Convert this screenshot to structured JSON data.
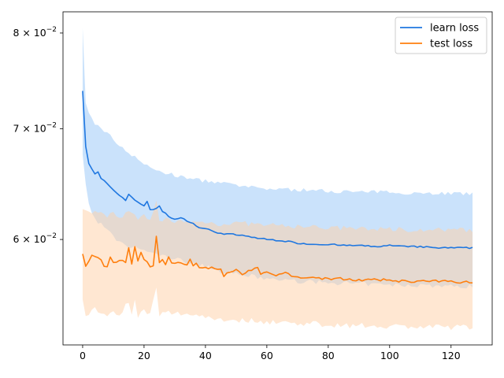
{
  "chart_data": {
    "type": "line",
    "title": "",
    "xlabel": "",
    "ylabel": "",
    "xlim": [
      -6.4,
      133.4
    ],
    "ylim": [
      0.0518,
      0.0824
    ],
    "yscale": "log",
    "grid": false,
    "legend_position": "top-right",
    "x_ticks": [
      0,
      20,
      40,
      60,
      80,
      100,
      120
    ],
    "x_tick_labels": [
      "0",
      "20",
      "40",
      "60",
      "80",
      "100",
      "120"
    ],
    "y_ticks": [
      0.06,
      0.07,
      0.08
    ],
    "y_tick_labels": [
      {
        "mantissa": "6",
        "base": "10",
        "exp": "−2"
      },
      {
        "mantissa": "7",
        "base": "10",
        "exp": "−2"
      },
      {
        "mantissa": "8",
        "base": "10",
        "exp": "−2"
      }
    ],
    "series": [
      {
        "name": "learn loss",
        "color": "#1f77e0",
        "band_color": "#9fcaf7",
        "mean_keypoints": [
          [
            0,
            0.0738
          ],
          [
            1,
            0.0683
          ],
          [
            2,
            0.0667
          ],
          [
            3,
            0.0662
          ],
          [
            4,
            0.0657
          ],
          [
            5,
            0.0659
          ],
          [
            6,
            0.0653
          ],
          [
            7,
            0.0651
          ],
          [
            8,
            0.0648
          ],
          [
            10,
            0.0643
          ],
          [
            12,
            0.0638
          ],
          [
            14,
            0.0634
          ],
          [
            15,
            0.0639
          ],
          [
            16,
            0.0636
          ],
          [
            18,
            0.0632
          ],
          [
            20,
            0.0629
          ],
          [
            21,
            0.0633
          ],
          [
            22,
            0.0625
          ],
          [
            24,
            0.0626
          ],
          [
            25,
            0.0629
          ],
          [
            26,
            0.0624
          ],
          [
            28,
            0.062
          ],
          [
            30,
            0.0617
          ],
          [
            32,
            0.0618
          ],
          [
            35,
            0.0615
          ],
          [
            38,
            0.061
          ],
          [
            40,
            0.0609
          ],
          [
            45,
            0.0605
          ],
          [
            50,
            0.0604
          ],
          [
            55,
            0.0602
          ],
          [
            60,
            0.06
          ],
          [
            65,
            0.0599
          ],
          [
            70,
            0.0597
          ],
          [
            75,
            0.0596
          ],
          [
            80,
            0.0596
          ],
          [
            85,
            0.0595
          ],
          [
            90,
            0.0595
          ],
          [
            95,
            0.0594
          ],
          [
            100,
            0.0595
          ],
          [
            105,
            0.0594
          ],
          [
            110,
            0.0594
          ],
          [
            115,
            0.0593
          ],
          [
            120,
            0.0593
          ],
          [
            127,
            0.0593
          ]
        ],
        "upper_keypoints": [
          [
            0,
            0.0804
          ],
          [
            1,
            0.0725
          ],
          [
            2,
            0.0715
          ],
          [
            3,
            0.071
          ],
          [
            4,
            0.0705
          ],
          [
            5,
            0.0703
          ],
          [
            8,
            0.0696
          ],
          [
            10,
            0.069
          ],
          [
            12,
            0.0684
          ],
          [
            15,
            0.0677
          ],
          [
            18,
            0.0672
          ],
          [
            20,
            0.0666
          ],
          [
            22,
            0.0663
          ],
          [
            25,
            0.066
          ],
          [
            30,
            0.0656
          ],
          [
            35,
            0.0653
          ],
          [
            40,
            0.0651
          ],
          [
            45,
            0.0649
          ],
          [
            50,
            0.0647
          ],
          [
            55,
            0.0645
          ],
          [
            60,
            0.0644
          ],
          [
            70,
            0.0643
          ],
          [
            80,
            0.0642
          ],
          [
            90,
            0.0641
          ],
          [
            100,
            0.0641
          ],
          [
            110,
            0.064
          ],
          [
            120,
            0.064
          ],
          [
            127,
            0.0639
          ]
        ],
        "lower_keypoints": [
          [
            0,
            0.0676
          ],
          [
            1,
            0.0648
          ],
          [
            2,
            0.063
          ],
          [
            3,
            0.0622
          ],
          [
            5,
            0.0615
          ],
          [
            8,
            0.0608
          ],
          [
            10,
            0.0602
          ],
          [
            12,
            0.0597
          ],
          [
            15,
            0.0594
          ],
          [
            18,
            0.0593
          ],
          [
            20,
            0.0591
          ],
          [
            22,
            0.0589
          ],
          [
            25,
            0.0587
          ],
          [
            30,
            0.0584
          ],
          [
            35,
            0.0581
          ],
          [
            40,
            0.0578
          ],
          [
            45,
            0.0574
          ],
          [
            50,
            0.0572
          ],
          [
            55,
            0.057
          ],
          [
            60,
            0.0568
          ],
          [
            70,
            0.0566
          ],
          [
            80,
            0.0565
          ],
          [
            90,
            0.0564
          ],
          [
            100,
            0.0563
          ],
          [
            110,
            0.0563
          ],
          [
            120,
            0.0562
          ],
          [
            127,
            0.0562
          ]
        ]
      },
      {
        "name": "test loss",
        "color": "#ff7f0e",
        "band_color": "#ffcfa5",
        "mean_keypoints": [
          [
            0,
            0.0588
          ],
          [
            1,
            0.0578
          ],
          [
            2,
            0.0582
          ],
          [
            3,
            0.0587
          ],
          [
            4,
            0.0586
          ],
          [
            5,
            0.0585
          ],
          [
            6,
            0.0583
          ],
          [
            7,
            0.0577
          ],
          [
            8,
            0.0577
          ],
          [
            9,
            0.0585
          ],
          [
            10,
            0.0581
          ],
          [
            12,
            0.0583
          ],
          [
            14,
            0.0582
          ],
          [
            15,
            0.0594
          ],
          [
            16,
            0.058
          ],
          [
            17,
            0.0595
          ],
          [
            18,
            0.0582
          ],
          [
            19,
            0.059
          ],
          [
            20,
            0.0584
          ],
          [
            21,
            0.0582
          ],
          [
            22,
            0.0578
          ],
          [
            23,
            0.0578
          ],
          [
            24,
            0.0602
          ],
          [
            25,
            0.058
          ],
          [
            26,
            0.0583
          ],
          [
            27,
            0.058
          ],
          [
            28,
            0.0585
          ],
          [
            29,
            0.058
          ],
          [
            30,
            0.0581
          ],
          [
            32,
            0.058
          ],
          [
            34,
            0.0579
          ],
          [
            35,
            0.0584
          ],
          [
            36,
            0.0578
          ],
          [
            37,
            0.0581
          ],
          [
            38,
            0.0576
          ],
          [
            40,
            0.0577
          ],
          [
            45,
            0.0576
          ],
          [
            46,
            0.057
          ],
          [
            48,
            0.0574
          ],
          [
            50,
            0.0575
          ],
          [
            52,
            0.0571
          ],
          [
            55,
            0.0575
          ],
          [
            57,
            0.0577
          ],
          [
            58,
            0.0571
          ],
          [
            60,
            0.0573
          ],
          [
            63,
            0.057
          ],
          [
            65,
            0.0573
          ],
          [
            70,
            0.0569
          ],
          [
            75,
            0.0569
          ],
          [
            80,
            0.0568
          ],
          [
            85,
            0.0568
          ],
          [
            90,
            0.0567
          ],
          [
            95,
            0.0567
          ],
          [
            100,
            0.0567
          ],
          [
            105,
            0.0566
          ],
          [
            110,
            0.0566
          ],
          [
            115,
            0.0566
          ],
          [
            120,
            0.0566
          ],
          [
            127,
            0.0565
          ]
        ],
        "upper_keypoints": [
          [
            0,
            0.0628
          ],
          [
            2,
            0.0625
          ],
          [
            5,
            0.0622
          ],
          [
            8,
            0.062
          ],
          [
            10,
            0.0624
          ],
          [
            12,
            0.0619
          ],
          [
            15,
            0.0623
          ],
          [
            18,
            0.0617
          ],
          [
            20,
            0.062
          ],
          [
            22,
            0.0615
          ],
          [
            24,
            0.0632
          ],
          [
            25,
            0.0615
          ],
          [
            28,
            0.0618
          ],
          [
            30,
            0.0616
          ],
          [
            35,
            0.0614
          ],
          [
            40,
            0.0615
          ],
          [
            45,
            0.0613
          ],
          [
            50,
            0.0614
          ],
          [
            55,
            0.0613
          ],
          [
            60,
            0.0612
          ],
          [
            70,
            0.0611
          ],
          [
            80,
            0.061
          ],
          [
            90,
            0.0609
          ],
          [
            100,
            0.0609
          ],
          [
            110,
            0.0608
          ],
          [
            120,
            0.0608
          ],
          [
            127,
            0.0608
          ]
        ],
        "lower_keypoints": [
          [
            0,
            0.0552
          ],
          [
            1,
            0.054
          ],
          [
            2,
            0.0542
          ],
          [
            4,
            0.0545
          ],
          [
            6,
            0.054
          ],
          [
            8,
            0.0541
          ],
          [
            10,
            0.0543
          ],
          [
            12,
            0.0541
          ],
          [
            15,
            0.055
          ],
          [
            16,
            0.0539
          ],
          [
            17,
            0.0553
          ],
          [
            18,
            0.054
          ],
          [
            20,
            0.0543
          ],
          [
            22,
            0.054
          ],
          [
            24,
            0.056
          ],
          [
            25,
            0.054
          ],
          [
            28,
            0.0542
          ],
          [
            30,
            0.0541
          ],
          [
            35,
            0.0541
          ],
          [
            40,
            0.0539
          ],
          [
            45,
            0.0537
          ],
          [
            50,
            0.0536
          ],
          [
            55,
            0.0536
          ],
          [
            60,
            0.0535
          ],
          [
            70,
            0.0534
          ],
          [
            80,
            0.0533
          ],
          [
            90,
            0.0532
          ],
          [
            100,
            0.0532
          ],
          [
            110,
            0.0531
          ],
          [
            120,
            0.0531
          ],
          [
            127,
            0.0531
          ]
        ]
      }
    ]
  }
}
